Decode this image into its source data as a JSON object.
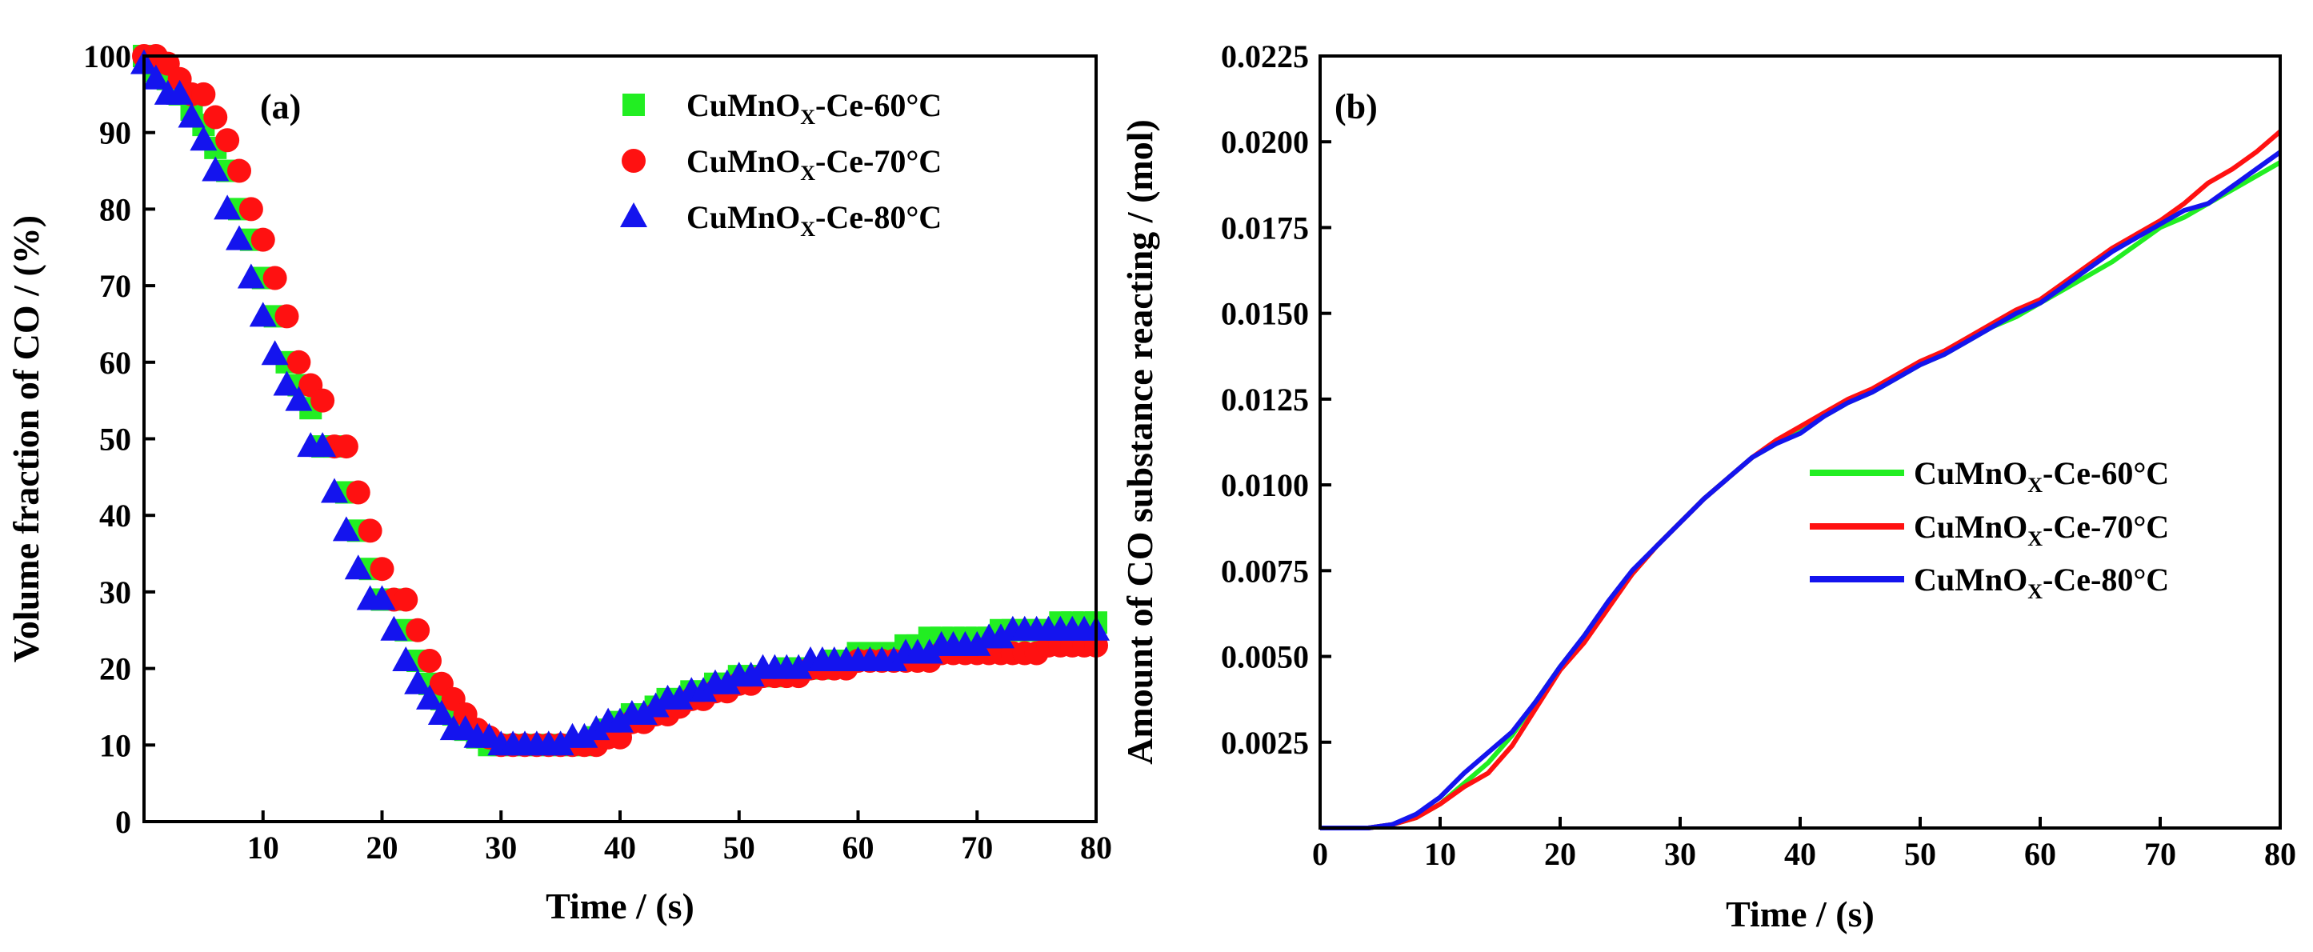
{
  "chart_data": [
    {
      "type": "scatter",
      "panel_label": "(a)",
      "xlabel": "Time / (s)",
      "ylabel": "Volume fraction of CO / (%)",
      "xlim": [
        0,
        80
      ],
      "ylim": [
        0,
        100
      ],
      "x_ticks": [
        "10",
        "20",
        "30",
        "40",
        "50",
        "60",
        "70",
        "80"
      ],
      "y_ticks": [
        "0",
        "10",
        "20",
        "30",
        "40",
        "50",
        "60",
        "70",
        "80",
        "90",
        "100"
      ],
      "legend_position": "top-right",
      "series": [
        {
          "name_main": "CuMnO",
          "name_sub": "X",
          "name_tail": "-Ce-60°C",
          "marker": "square",
          "color": "#22ee22",
          "x": [
            0,
            1,
            2,
            3,
            4,
            5,
            6,
            7,
            8,
            9,
            10,
            11,
            12,
            13,
            14,
            15,
            16,
            17,
            18,
            19,
            20,
            21,
            22,
            23,
            24,
            25,
            26,
            27,
            28,
            29,
            30,
            31,
            32,
            33,
            34,
            35,
            36,
            37,
            38,
            39,
            40,
            41,
            42,
            43,
            44,
            45,
            46,
            47,
            48,
            49,
            50,
            51,
            52,
            53,
            54,
            55,
            56,
            57,
            58,
            59,
            60,
            61,
            62,
            63,
            64,
            65,
            66,
            67,
            68,
            69,
            70,
            71,
            72,
            73,
            74,
            75,
            76,
            77,
            78,
            79,
            80
          ],
          "y": [
            100,
            98,
            97,
            95,
            93,
            91,
            88,
            85,
            80,
            76,
            71,
            66,
            60,
            57,
            54,
            49,
            49,
            43,
            38,
            33,
            29,
            29,
            25,
            21,
            18,
            16,
            14,
            12,
            11,
            10,
            10,
            10,
            10,
            10,
            10,
            10,
            10,
            10,
            11,
            12,
            13,
            14,
            14,
            15,
            16,
            16,
            17,
            17,
            18,
            18,
            19,
            19,
            19,
            19,
            20,
            20,
            20,
            20,
            21,
            21,
            22,
            22,
            22,
            22,
            23,
            23,
            24,
            24,
            24,
            24,
            24,
            24,
            25,
            25,
            25,
            25,
            25,
            26,
            26,
            26,
            26
          ]
        },
        {
          "name_main": "CuMnO",
          "name_sub": "X",
          "name_tail": "-Ce-70°C",
          "marker": "circle",
          "color": "#ff1111",
          "x": [
            0,
            1,
            2,
            3,
            4,
            5,
            6,
            7,
            8,
            9,
            10,
            11,
            12,
            13,
            14,
            15,
            16,
            17,
            18,
            19,
            20,
            21,
            22,
            23,
            24,
            25,
            26,
            27,
            28,
            29,
            30,
            31,
            32,
            33,
            34,
            35,
            36,
            37,
            38,
            39,
            40,
            41,
            42,
            43,
            44,
            45,
            46,
            47,
            48,
            49,
            50,
            51,
            52,
            53,
            54,
            55,
            56,
            57,
            58,
            59,
            60,
            61,
            62,
            63,
            64,
            65,
            66,
            67,
            68,
            69,
            70,
            71,
            72,
            73,
            74,
            75,
            76,
            77,
            78,
            79,
            80
          ],
          "y": [
            100,
            100,
            99,
            97,
            95,
            95,
            92,
            89,
            85,
            80,
            76,
            71,
            66,
            60,
            57,
            55,
            49,
            49,
            43,
            38,
            33,
            29,
            29,
            25,
            21,
            18,
            16,
            14,
            12,
            11,
            10,
            10,
            10,
            10,
            10,
            10,
            10,
            10,
            10,
            11,
            11,
            13,
            13,
            14,
            14,
            15,
            16,
            16,
            17,
            17,
            18,
            18,
            19,
            19,
            19,
            19,
            20,
            20,
            20,
            20,
            21,
            21,
            21,
            21,
            21,
            21,
            21,
            22,
            22,
            22,
            22,
            22,
            22,
            22,
            22,
            22,
            23,
            23,
            23,
            23,
            23
          ]
        },
        {
          "name_main": "CuMnO",
          "name_sub": "X",
          "name_tail": "-Ce-80°C",
          "marker": "triangle",
          "color": "#1414ee",
          "x": [
            0,
            1,
            2,
            3,
            4,
            5,
            6,
            7,
            8,
            9,
            10,
            11,
            12,
            13,
            14,
            15,
            16,
            17,
            18,
            19,
            20,
            21,
            22,
            23,
            24,
            25,
            26,
            27,
            28,
            29,
            30,
            31,
            32,
            33,
            34,
            35,
            36,
            37,
            38,
            39,
            40,
            41,
            42,
            43,
            44,
            45,
            46,
            47,
            48,
            49,
            50,
            51,
            52,
            53,
            54,
            55,
            56,
            57,
            58,
            59,
            60,
            61,
            62,
            63,
            64,
            65,
            66,
            67,
            68,
            69,
            70,
            71,
            72,
            73,
            74,
            75,
            76,
            77,
            78,
            79,
            80
          ],
          "y": [
            99,
            97,
            95,
            95,
            92,
            89,
            85,
            80,
            76,
            71,
            66,
            61,
            57,
            55,
            49,
            49,
            43,
            38,
            33,
            29,
            29,
            25,
            21,
            18,
            16,
            14,
            12,
            12,
            11,
            11,
            10,
            10,
            10,
            10,
            10,
            10,
            11,
            11,
            12,
            13,
            13,
            14,
            14,
            15,
            16,
            16,
            17,
            17,
            18,
            18,
            19,
            19,
            20,
            20,
            20,
            20,
            21,
            21,
            21,
            21,
            21,
            21,
            21,
            21,
            22,
            22,
            22,
            23,
            23,
            23,
            23,
            24,
            24,
            25,
            25,
            25,
            25,
            25,
            25,
            25,
            25
          ]
        }
      ]
    },
    {
      "type": "line",
      "panel_label": "(b)",
      "xlabel": "Time / (s)",
      "ylabel": "Amount of CO substance reacting / (mol)",
      "xlim": [
        0,
        80
      ],
      "ylim": [
        0,
        0.0225
      ],
      "x_ticks": [
        "0",
        "10",
        "20",
        "30",
        "40",
        "50",
        "60",
        "70",
        "80"
      ],
      "y_ticks": [
        "0.0025",
        "0.0050",
        "0.0075",
        "0.0100",
        "0.0125",
        "0.0150",
        "0.0175",
        "0.0200",
        "0.0225"
      ],
      "legend_position": "center-right",
      "series": [
        {
          "name_main": "CuMnO",
          "name_sub": "X",
          "name_tail": "-Ce-60°C",
          "color": "#22ee22",
          "x": [
            0,
            4,
            6,
            8,
            10,
            12,
            14,
            16,
            18,
            20,
            22,
            24,
            26,
            28,
            30,
            32,
            34,
            36,
            38,
            40,
            42,
            44,
            46,
            48,
            50,
            52,
            54,
            56,
            58,
            60,
            62,
            64,
            66,
            68,
            70,
            72,
            74,
            76,
            78,
            80
          ],
          "y": [
            0.0,
            0.0,
            0.0001,
            0.0003,
            0.0007,
            0.0013,
            0.0019,
            0.0027,
            0.0037,
            0.0047,
            0.0055,
            0.0065,
            0.0074,
            0.0082,
            0.0089,
            0.0096,
            0.0102,
            0.0108,
            0.0112,
            0.0116,
            0.012,
            0.0124,
            0.0127,
            0.0131,
            0.0135,
            0.0138,
            0.0142,
            0.0146,
            0.0149,
            0.0153,
            0.0157,
            0.0161,
            0.0165,
            0.017,
            0.0175,
            0.0178,
            0.0182,
            0.0186,
            0.019,
            0.0194
          ]
        },
        {
          "name_main": "CuMnO",
          "name_sub": "X",
          "name_tail": "-Ce-70°C",
          "color": "#ff1111",
          "x": [
            0,
            4,
            6,
            8,
            10,
            12,
            13,
            14,
            16,
            18,
            20,
            22,
            24,
            26,
            28,
            30,
            32,
            34,
            36,
            38,
            40,
            42,
            44,
            46,
            48,
            50,
            52,
            54,
            56,
            58,
            60,
            62,
            64,
            66,
            68,
            70,
            72,
            74,
            76,
            78,
            80
          ],
          "y": [
            0.0,
            0.0,
            0.0001,
            0.0003,
            0.0007,
            0.0012,
            0.0014,
            0.0016,
            0.0024,
            0.0035,
            0.0046,
            0.0054,
            0.0064,
            0.0074,
            0.0082,
            0.0089,
            0.0096,
            0.0102,
            0.0108,
            0.0113,
            0.0117,
            0.0121,
            0.0125,
            0.0128,
            0.0132,
            0.0136,
            0.0139,
            0.0143,
            0.0147,
            0.0151,
            0.0154,
            0.0159,
            0.0164,
            0.0169,
            0.0173,
            0.0177,
            0.0182,
            0.0188,
            0.0192,
            0.0197,
            0.0203
          ]
        },
        {
          "name_main": "CuMnO",
          "name_sub": "X",
          "name_tail": "-Ce-80°C",
          "color": "#1414ee",
          "x": [
            0,
            4,
            6,
            8,
            10,
            12,
            14,
            16,
            18,
            20,
            22,
            24,
            26,
            28,
            30,
            32,
            34,
            36,
            38,
            40,
            42,
            44,
            46,
            48,
            50,
            52,
            54,
            56,
            58,
            60,
            62,
            64,
            66,
            68,
            70,
            72,
            73,
            74,
            76,
            78,
            80
          ],
          "y": [
            0.0,
            0.0,
            0.0001,
            0.0004,
            0.0009,
            0.0016,
            0.0022,
            0.0028,
            0.0037,
            0.0047,
            0.0056,
            0.0066,
            0.0075,
            0.0082,
            0.0089,
            0.0096,
            0.0102,
            0.0108,
            0.0112,
            0.0115,
            0.012,
            0.0124,
            0.0127,
            0.0131,
            0.0135,
            0.0138,
            0.0142,
            0.0146,
            0.015,
            0.0153,
            0.0158,
            0.0163,
            0.0168,
            0.0172,
            0.0176,
            0.018,
            0.0181,
            0.0182,
            0.0187,
            0.0192,
            0.0197
          ]
        }
      ]
    }
  ]
}
